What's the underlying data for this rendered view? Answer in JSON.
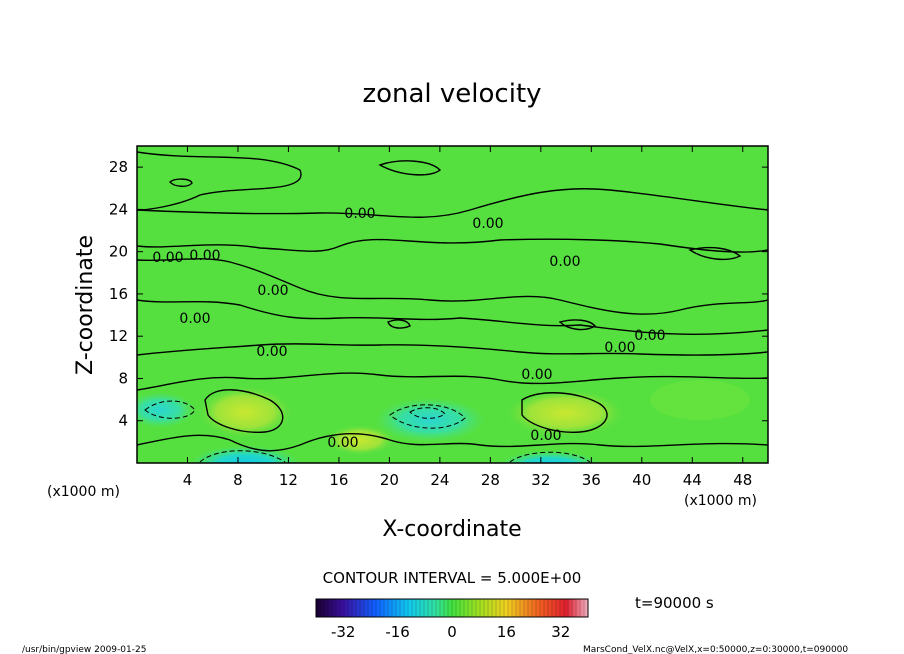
{
  "chart_data": {
    "type": "heatmap",
    "title": "zonal velocity",
    "xlabel": "X-coordinate",
    "ylabel": "Z-coordinate",
    "x_unit_left": "(x1000 m)",
    "x_unit_right": "(x1000 m)",
    "xlim": [
      0,
      50
    ],
    "ylim": [
      0,
      30
    ],
    "x_ticks": [
      "4",
      "8",
      "12",
      "16",
      "20",
      "24",
      "28",
      "32",
      "36",
      "40",
      "44",
      "48"
    ],
    "y_ticks": [
      "4",
      "8",
      "12",
      "16",
      "20",
      "24",
      "28"
    ],
    "contour_interval_text": "CONTOUR INTERVAL = 5.000E+00",
    "contour_labels": [
      "0.00",
      "0.00",
      "0.00",
      "0.00",
      "0.00",
      "0.00",
      "0.00",
      "0.00",
      "0.00",
      "0.00",
      "0.00",
      "0.00",
      "0.00"
    ],
    "colorbar": {
      "range": [
        -40,
        40
      ],
      "ticks": [
        "-32",
        "-16",
        "0",
        "16",
        "32"
      ]
    },
    "time_text": "t=90000 s",
    "footer_left": "/usr/bin/gpview  2009-01-25",
    "footer_right": "MarsCond_VelX.nc@VelX,x=0:50000,z=0:30000,t=090000"
  }
}
